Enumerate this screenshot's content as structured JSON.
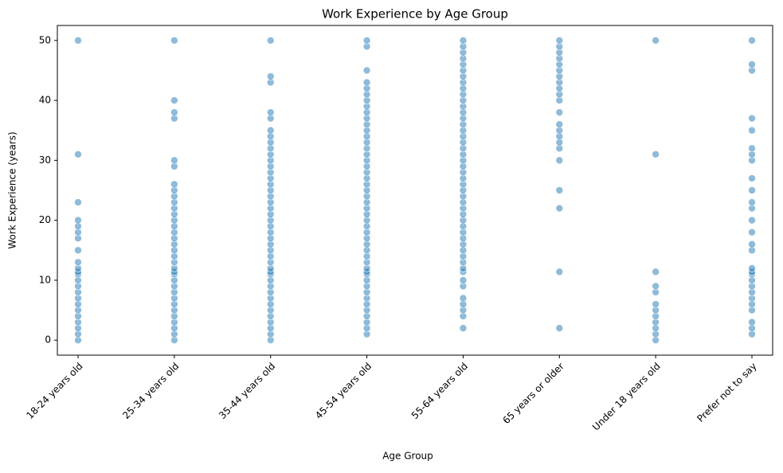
{
  "chart_data": {
    "type": "scatter",
    "title": "Work Experience by Age Group",
    "x_label": "Age Group",
    "y_label": "Work Experience (years)",
    "categories": [
      "18-24 years old",
      "25-34 years old",
      "35-44 years old",
      "45-54 years old",
      "55-64 years old",
      "65 years or older",
      "Under 18 years old",
      "Prefer not to say"
    ],
    "color": "#1f77b4",
    "values": [
      [
        0,
        1,
        2,
        3,
        4,
        5,
        6,
        7,
        8,
        9,
        10,
        11,
        11.4,
        12,
        13,
        15,
        17,
        18,
        19,
        20,
        23,
        31,
        50
      ],
      [
        0,
        1,
        2,
        3,
        4,
        5,
        6,
        7,
        8,
        9,
        10,
        11,
        11.4,
        12,
        13,
        14,
        15,
        16,
        17,
        18,
        19,
        20,
        21,
        22,
        23,
        24,
        25,
        26,
        29,
        30,
        37,
        38,
        40,
        50
      ],
      [
        0,
        1,
        2,
        3,
        4,
        5,
        6,
        7,
        8,
        9,
        10,
        11,
        11.4,
        12,
        13,
        14,
        15,
        16,
        17,
        18,
        19,
        20,
        21,
        22,
        23,
        24,
        25,
        26,
        27,
        28,
        29,
        30,
        31,
        32,
        33,
        34,
        35,
        37,
        38,
        43,
        44,
        50
      ],
      [
        1,
        2,
        3,
        4,
        5,
        6,
        7,
        8,
        9,
        10,
        11,
        11.4,
        12,
        13,
        14,
        15,
        16,
        17,
        18,
        19,
        20,
        21,
        22,
        23,
        24,
        25,
        26,
        27,
        28,
        29,
        30,
        31,
        32,
        33,
        34,
        35,
        36,
        37,
        38,
        39,
        40,
        41,
        42,
        43,
        45,
        49,
        50
      ],
      [
        2,
        4,
        5,
        6,
        7,
        9,
        10,
        11.4,
        12,
        13,
        14,
        15,
        16,
        17,
        18,
        19,
        20,
        21,
        22,
        23,
        24,
        25,
        26,
        27,
        28,
        29,
        30,
        31,
        32,
        33,
        34,
        35,
        36,
        37,
        38,
        39,
        40,
        41,
        42,
        43,
        44,
        45,
        46,
        47,
        48,
        49,
        50
      ],
      [
        2,
        11.4,
        22,
        25,
        30,
        32,
        33,
        34,
        35,
        36,
        38,
        40,
        41,
        42,
        43,
        44,
        45,
        46,
        47,
        48,
        49,
        50
      ],
      [
        0,
        1,
        2,
        3,
        4,
        5,
        6,
        8,
        9,
        11.4,
        31,
        50
      ],
      [
        1,
        2,
        3,
        5,
        6,
        7,
        8,
        9,
        10,
        11,
        11.4,
        12,
        15,
        16,
        18,
        20,
        22,
        23,
        25,
        27,
        30,
        31,
        32,
        35,
        37,
        45,
        46,
        50
      ]
    ],
    "ylim": [
      -2.5,
      52.5
    ],
    "yticks": [
      0,
      10,
      20,
      30,
      40,
      50
    ]
  }
}
